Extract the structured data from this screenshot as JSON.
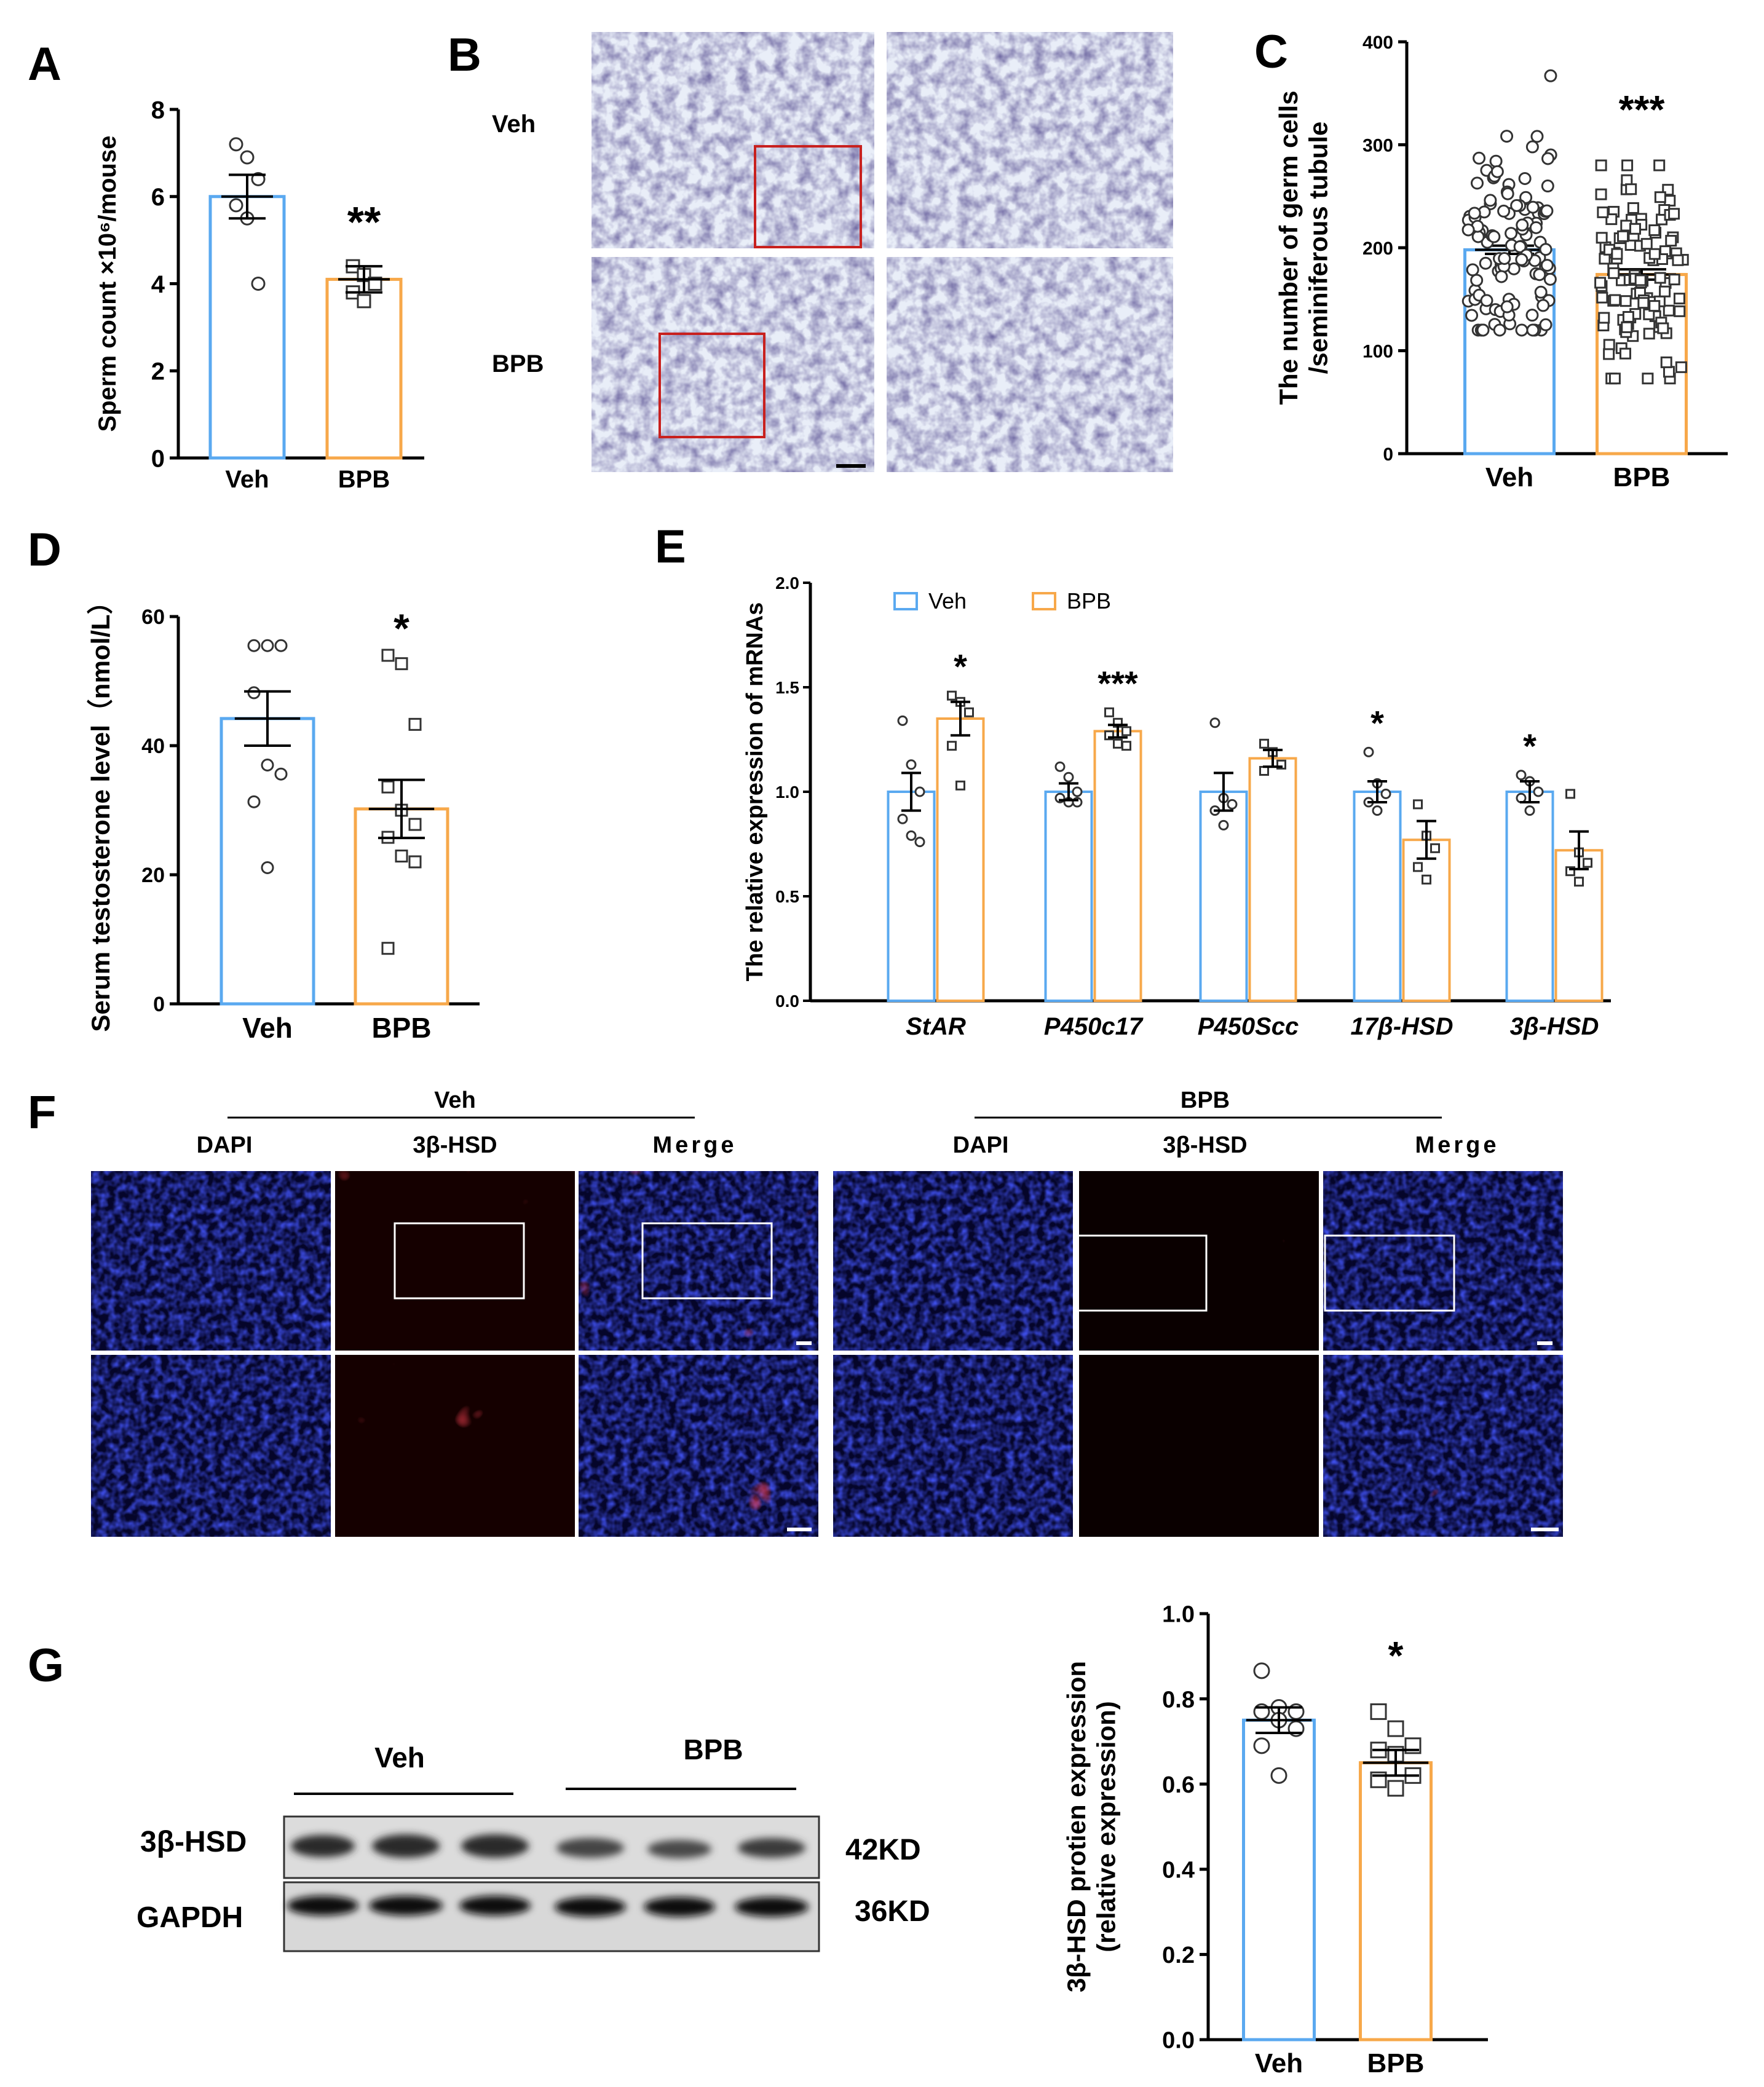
{
  "colors": {
    "veh": "#5aa9f0",
    "bpb": "#f7a84a",
    "red_box": "#c8201e",
    "white_box": "#ffffff",
    "dapi": "#1018a8",
    "hsd": "#c4141a"
  },
  "panels": {
    "A": {
      "letter": "A"
    },
    "B": {
      "letter": "B",
      "row_labels": [
        "Veh",
        "BPB"
      ]
    },
    "C": {
      "letter": "C"
    },
    "D": {
      "letter": "D"
    },
    "E": {
      "letter": "E"
    },
    "F": {
      "letter": "F",
      "groups": [
        "Veh",
        "BPB"
      ],
      "columns": [
        "DAPI",
        "3β-HSD",
        "Merge"
      ]
    },
    "G": {
      "letter": "G",
      "groups": [
        "Veh",
        "BPB"
      ],
      "bands": [
        "3β-HSD",
        "GAPDH"
      ],
      "sizes": [
        "42KD",
        "36KD"
      ]
    }
  },
  "chart_data": [
    {
      "id": "A",
      "type": "bar",
      "categories": [
        "Veh",
        "BPB"
      ],
      "values": [
        6.0,
        4.1
      ],
      "errors": [
        0.5,
        0.3
      ],
      "points": [
        [
          7.2,
          6.9,
          6.4,
          5.8,
          5.5,
          4.0
        ],
        [
          4.4,
          4.2,
          4.0,
          3.8,
          3.6
        ]
      ],
      "ylabel": "Sperm count ×10⁶/mouse",
      "ylim": [
        0,
        8
      ],
      "yticks": [
        0,
        2,
        4,
        6,
        8
      ],
      "significance": [
        "",
        "**"
      ]
    },
    {
      "id": "C",
      "type": "bar",
      "categories": [
        "Veh",
        "BPB"
      ],
      "values": [
        198,
        174
      ],
      "errors": [
        4,
        5
      ],
      "ylabel": [
        "The number of germ cells",
        "/seminiferous tubule"
      ],
      "ylim": [
        0,
        400
      ],
      "yticks": [
        0,
        100,
        200,
        300,
        400
      ],
      "significance": [
        "",
        "***"
      ],
      "veh_range": [
        120,
        367
      ],
      "bpb_range": [
        73,
        280
      ],
      "n_points": 110
    },
    {
      "id": "D",
      "type": "bar",
      "categories": [
        "Veh",
        "BPB"
      ],
      "values": [
        44.2,
        30.2
      ],
      "errors": [
        4.2,
        4.5
      ],
      "points": [
        [
          55.5,
          55.5,
          55.5,
          48.2,
          37.0,
          35.6,
          31.3,
          21.1
        ],
        [
          54.0,
          52.7,
          43.3,
          33.6,
          30.0,
          27.8,
          25.8,
          22.9,
          22.0,
          8.6
        ]
      ],
      "ylabel": "Serum testosterone level（nmol/L）",
      "ylim": [
        0,
        60
      ],
      "yticks": [
        0,
        20,
        40,
        60
      ],
      "significance": [
        "",
        "*"
      ]
    },
    {
      "id": "E",
      "type": "bar",
      "categories": [
        "StAR",
        "P450c17",
        "P450Scc",
        "17β-HSD",
        "3β-HSD"
      ],
      "series": [
        {
          "name": "Veh",
          "values": [
            1.0,
            1.0,
            1.0,
            1.0,
            1.0
          ],
          "errors": [
            0.09,
            0.04,
            0.09,
            0.05,
            0.05
          ],
          "points": [
            [
              1.34,
              1.13,
              1.0,
              0.87,
              0.79,
              0.76
            ],
            [
              1.12,
              1.07,
              1.0,
              0.97,
              0.95,
              0.95
            ],
            [
              1.33,
              0.97,
              0.94,
              0.91,
              0.84
            ],
            [
              1.19,
              1.04,
              0.99,
              0.95,
              0.91
            ],
            [
              1.08,
              1.05,
              1.0,
              0.97,
              0.91
            ]
          ],
          "significance": [
            "",
            "",
            "",
            "*",
            "*"
          ]
        },
        {
          "name": "BPB",
          "values": [
            1.35,
            1.29,
            1.16,
            0.77,
            0.72
          ],
          "errors": [
            0.08,
            0.03,
            0.04,
            0.09,
            0.09
          ],
          "points": [
            [
              1.46,
              1.43,
              1.38,
              1.22,
              1.03
            ],
            [
              1.38,
              1.33,
              1.29,
              1.27,
              1.23,
              1.22
            ],
            [
              1.23,
              1.19,
              1.13,
              1.1
            ],
            [
              0.94,
              0.79,
              0.73,
              0.64,
              0.58
            ],
            [
              0.99,
              0.71,
              0.66,
              0.62,
              0.57
            ]
          ],
          "significance": [
            "*",
            "***",
            "",
            "",
            ""
          ]
        }
      ],
      "ylabel": "The relative expression of mRNAs",
      "ylim": [
        0,
        2.0
      ],
      "yticks": [
        0.0,
        0.5,
        1.0,
        1.5,
        2.0
      ],
      "legend": "top"
    },
    {
      "id": "G",
      "type": "bar",
      "categories": [
        "Veh",
        "BPB"
      ],
      "values": [
        0.75,
        0.65
      ],
      "errors": [
        0.03,
        0.03
      ],
      "points": [
        [
          0.866,
          0.78,
          0.77,
          0.77,
          0.75,
          0.73,
          0.69,
          0.62
        ],
        [
          0.77,
          0.73,
          0.69,
          0.68,
          0.67,
          0.62,
          0.61,
          0.59
        ]
      ],
      "ylabel": [
        "3β-HSD protien expression",
        "(relative expression)"
      ],
      "ylim": [
        0,
        1.0
      ],
      "yticks": [
        0.0,
        0.2,
        0.4,
        0.6,
        0.8,
        1.0
      ],
      "significance": [
        "",
        "*"
      ]
    }
  ]
}
